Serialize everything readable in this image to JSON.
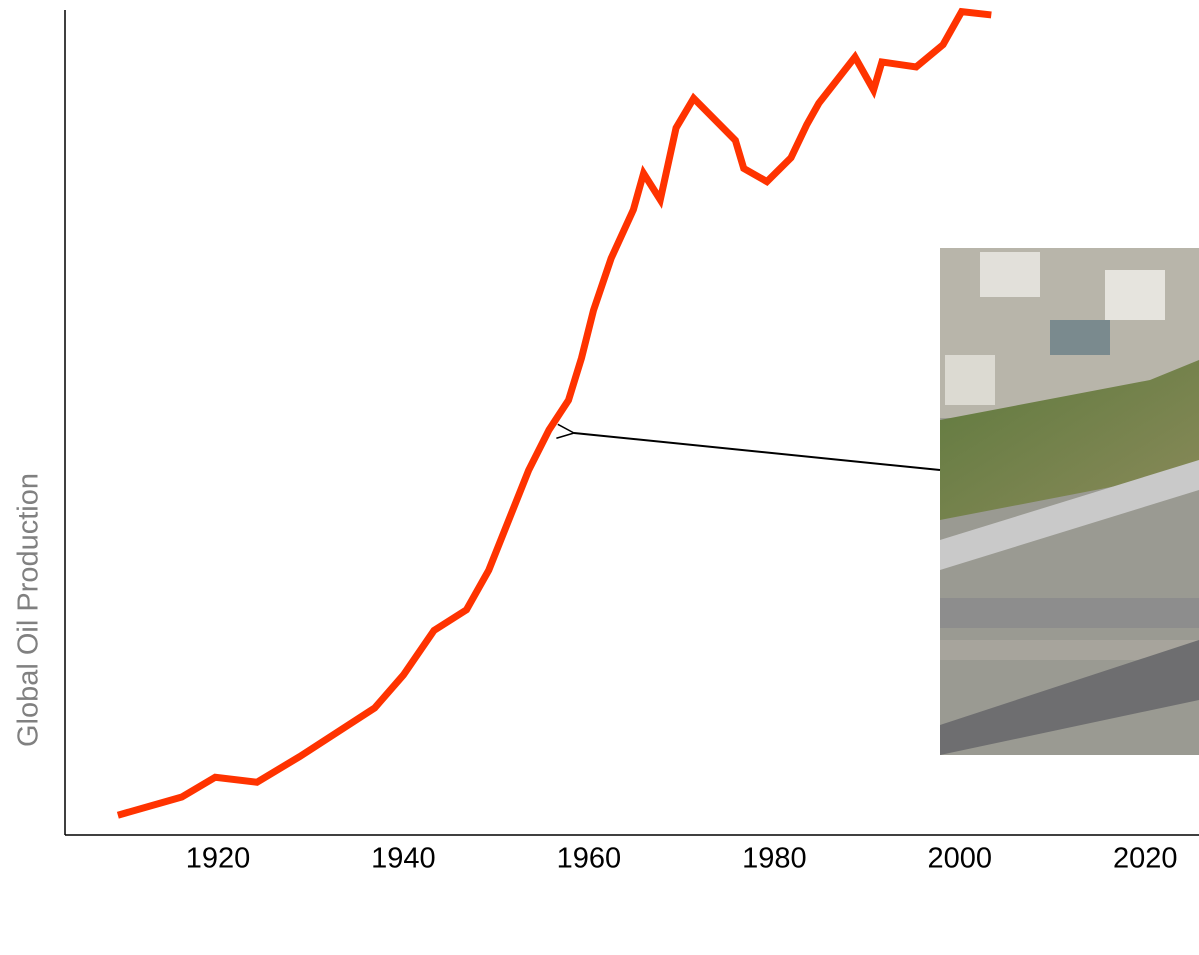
{
  "chart_data": {
    "type": "line",
    "ylabel": "Global Oil Production",
    "x": [
      1909.2,
      1916.1,
      1919.7,
      1924.2,
      1928.8,
      1936.9,
      1940,
      1943.3,
      1946.8,
      1949.2,
      1953.5,
      1955.7,
      1957.8,
      1959.2,
      1960.5,
      1962.4,
      1964.8,
      1965.9,
      1967.7,
      1969.4,
      1971.3,
      1975.8,
      1976.7,
      1979.2,
      1981.8,
      1983.5,
      1984.8,
      1988.7,
      1990.7,
      1991.6,
      1995.3,
      1998.2,
      2000.2,
      2003.4
    ],
    "series": [
      {
        "color": "#ff3300",
        "values": [
          2.4,
          4.6,
          7.0,
          6.4,
          9.5,
          15.4,
          19.4,
          24.8,
          27.3,
          32.1,
          44.2,
          49.1,
          52.7,
          57.8,
          63.6,
          69.9,
          75.8,
          80.2,
          77.0,
          85.7,
          89.3,
          84.2,
          80.8,
          79.2,
          82.1,
          86.1,
          88.7,
          94.3,
          90.3,
          93.7,
          93.1,
          95.8,
          99.8,
          99.4
        ]
      }
    ],
    "xlim": [
      1903.5,
      2025.8
    ],
    "xticks": [
      1920,
      1940,
      1960,
      1980,
      2000,
      2020
    ],
    "ylim": [
      0,
      100
    ]
  }
}
